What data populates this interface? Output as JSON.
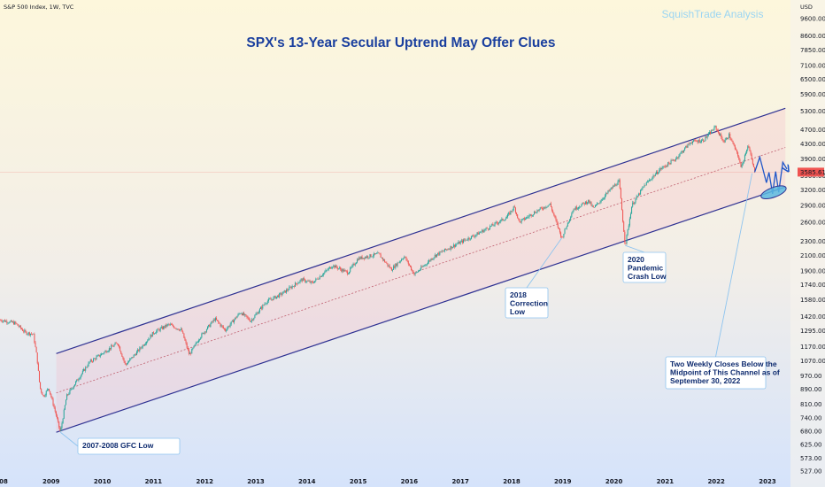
{
  "header": {
    "symbol": "S&P 500 Index, 1W, TVC",
    "currency": "USD",
    "watermark": "SquishTrade Analysis"
  },
  "colors": {
    "up": "#26a69a",
    "down": "#ef5350",
    "channel": "#2e3192",
    "projection": "#1e56c8",
    "title": "#1a3f9e",
    "ellipse_fill": "#5ab8e0",
    "price_tag": "#ef5350"
  },
  "chart_data": {
    "type": "candlestick",
    "title": "SPX's 13-Year Secular Uptrend May Offer Clues",
    "scale": "log",
    "ylim": [
      517,
      10600
    ],
    "xlim": [
      2008.0,
      2023.45
    ],
    "x_ticks": [
      "08",
      "2009",
      "2010",
      "2011",
      "2012",
      "2013",
      "2014",
      "2015",
      "2016",
      "2017",
      "2018",
      "2019",
      "2020",
      "2021",
      "2022",
      "2023"
    ],
    "y_ticks": [
      "9600.00",
      "8600.00",
      "7850.00",
      "7100.00",
      "6500.00",
      "5900.00",
      "5300.00",
      "4700.00",
      "4300.00",
      "3900.00",
      "3500.00",
      "3200.00",
      "2900.00",
      "2600.00",
      "2300.00",
      "2100.00",
      "1900.00",
      "1740.00",
      "1580.00",
      "1420.00",
      "1295.00",
      "1170.00",
      "1070.00",
      "970.00",
      "890.00",
      "810.00",
      "740.00",
      "680.00",
      "625.00",
      "573.00",
      "527.00"
    ],
    "current_price": "3585.61",
    "grid": false,
    "price_series": [
      {
        "x": 2008.0,
        "y": 1390
      },
      {
        "x": 2008.3,
        "y": 1360
      },
      {
        "x": 2008.5,
        "y": 1280
      },
      {
        "x": 2008.65,
        "y": 1270
      },
      {
        "x": 2008.72,
        "y": 1100
      },
      {
        "x": 2008.78,
        "y": 900
      },
      {
        "x": 2008.85,
        "y": 850
      },
      {
        "x": 2008.95,
        "y": 900
      },
      {
        "x": 2009.05,
        "y": 800
      },
      {
        "x": 2009.18,
        "y": 676
      },
      {
        "x": 2009.3,
        "y": 850
      },
      {
        "x": 2009.5,
        "y": 940
      },
      {
        "x": 2009.75,
        "y": 1060
      },
      {
        "x": 2010.0,
        "y": 1120
      },
      {
        "x": 2010.3,
        "y": 1200
      },
      {
        "x": 2010.45,
        "y": 1040
      },
      {
        "x": 2010.7,
        "y": 1140
      },
      {
        "x": 2011.0,
        "y": 1280
      },
      {
        "x": 2011.3,
        "y": 1350
      },
      {
        "x": 2011.55,
        "y": 1300
      },
      {
        "x": 2011.7,
        "y": 1110
      },
      {
        "x": 2011.9,
        "y": 1240
      },
      {
        "x": 2012.2,
        "y": 1400
      },
      {
        "x": 2012.4,
        "y": 1300
      },
      {
        "x": 2012.7,
        "y": 1460
      },
      {
        "x": 2012.9,
        "y": 1380
      },
      {
        "x": 2013.2,
        "y": 1560
      },
      {
        "x": 2013.5,
        "y": 1640
      },
      {
        "x": 2013.9,
        "y": 1800
      },
      {
        "x": 2014.1,
        "y": 1760
      },
      {
        "x": 2014.5,
        "y": 1970
      },
      {
        "x": 2014.8,
        "y": 1880
      },
      {
        "x": 2015.0,
        "y": 2060
      },
      {
        "x": 2015.4,
        "y": 2120
      },
      {
        "x": 2015.65,
        "y": 1920
      },
      {
        "x": 2015.9,
        "y": 2090
      },
      {
        "x": 2016.1,
        "y": 1860
      },
      {
        "x": 2016.5,
        "y": 2100
      },
      {
        "x": 2016.9,
        "y": 2250
      },
      {
        "x": 2017.3,
        "y": 2400
      },
      {
        "x": 2017.9,
        "y": 2680
      },
      {
        "x": 2018.05,
        "y": 2870
      },
      {
        "x": 2018.15,
        "y": 2600
      },
      {
        "x": 2018.5,
        "y": 2800
      },
      {
        "x": 2018.75,
        "y": 2920
      },
      {
        "x": 2018.98,
        "y": 2350
      },
      {
        "x": 2019.2,
        "y": 2820
      },
      {
        "x": 2019.5,
        "y": 2980
      },
      {
        "x": 2019.6,
        "y": 2840
      },
      {
        "x": 2019.95,
        "y": 3230
      },
      {
        "x": 2020.1,
        "y": 3380
      },
      {
        "x": 2020.22,
        "y": 2240
      },
      {
        "x": 2020.35,
        "y": 2900
      },
      {
        "x": 2020.6,
        "y": 3300
      },
      {
        "x": 2020.9,
        "y": 3650
      },
      {
        "x": 2021.2,
        "y": 3900
      },
      {
        "x": 2021.5,
        "y": 4350
      },
      {
        "x": 2021.75,
        "y": 4400
      },
      {
        "x": 2021.98,
        "y": 4790
      },
      {
        "x": 2022.15,
        "y": 4350
      },
      {
        "x": 2022.25,
        "y": 4550
      },
      {
        "x": 2022.45,
        "y": 3900
      },
      {
        "x": 2022.48,
        "y": 3670
      },
      {
        "x": 2022.62,
        "y": 4280
      },
      {
        "x": 2022.75,
        "y": 3585
      }
    ],
    "channel": {
      "upper": [
        {
          "x": 2009.1,
          "y": 1120
        },
        {
          "x": 2023.35,
          "y": 5400
        }
      ],
      "lower": [
        {
          "x": 2009.1,
          "y": 676
        },
        {
          "x": 2023.35,
          "y": 3260
        }
      ],
      "mid": [
        {
          "x": 2009.1,
          "y": 870
        },
        {
          "x": 2023.35,
          "y": 4200
        }
      ]
    },
    "projection": [
      {
        "x": 2022.75,
        "y": 3585
      },
      {
        "x": 2022.85,
        "y": 3950
      },
      {
        "x": 2022.98,
        "y": 3350
      },
      {
        "x": 2023.03,
        "y": 3580
      },
      {
        "x": 2023.1,
        "y": 3120
      },
      {
        "x": 2023.16,
        "y": 3600
      },
      {
        "x": 2023.22,
        "y": 3150
      },
      {
        "x": 2023.3,
        "y": 3820
      },
      {
        "x": 2023.38,
        "y": 3660
      }
    ],
    "annotations": [
      {
        "label_lines": [
          "2007-2008 GFC Low"
        ],
        "target": {
          "x": 2009.18,
          "y": 676
        }
      },
      {
        "label_lines": [
          "2018",
          "Correction",
          "Low"
        ],
        "target": {
          "x": 2018.98,
          "y": 2350
        }
      },
      {
        "label_lines": [
          "2020",
          "Pandemic",
          "Crash Low"
        ],
        "target": {
          "x": 2020.22,
          "y": 2240
        }
      },
      {
        "label_lines": [
          "Two Weekly Closes Below the",
          "Midpoint of This Channel as of",
          "September 30, 2022"
        ],
        "target": {
          "x": 2022.7,
          "y": 3560
        }
      }
    ]
  }
}
